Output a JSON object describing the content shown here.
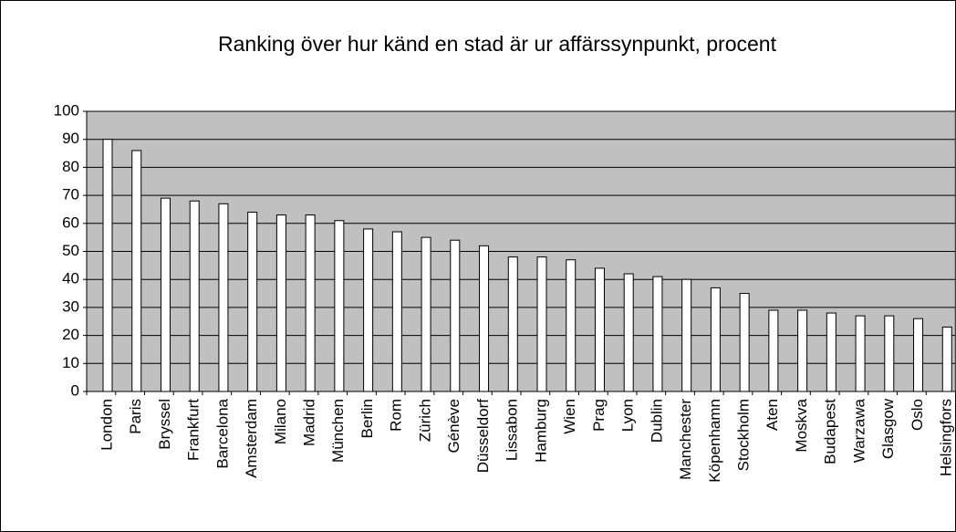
{
  "chart_data": {
    "type": "bar",
    "title": "Ranking över hur känd en stad är ur affärssynpunkt, procent",
    "categories": [
      "London",
      "Paris",
      "Bryssel",
      "Frankfurt",
      "Barcelona",
      "Amsterdam",
      "Milano",
      "Madrid",
      "München",
      "Berlin",
      "Rom",
      "Zürich",
      "Génève",
      "Düsseldorf",
      "Lissabon",
      "Hamburg",
      "Wien",
      "Prag",
      "Lyon",
      "Dublin",
      "Manchester",
      "Köpenhamn",
      "Stockholm",
      "Aten",
      "Moskva",
      "Budapest",
      "Warzawa",
      "Glasgow",
      "Oslo",
      "Helsingfors"
    ],
    "values": [
      90,
      86,
      69,
      68,
      67,
      64,
      63,
      63,
      61,
      58,
      57,
      55,
      54,
      52,
      48,
      48,
      47,
      44,
      42,
      41,
      40,
      37,
      35,
      29,
      29,
      28,
      27,
      27,
      26,
      23
    ],
    "color": "#ffffff",
    "plot_background": "#c0c0c0",
    "ylim": [
      0,
      100
    ],
    "yticks": [
      0,
      10,
      20,
      30,
      40,
      50,
      60,
      70,
      80,
      90,
      100
    ],
    "grid": true
  }
}
